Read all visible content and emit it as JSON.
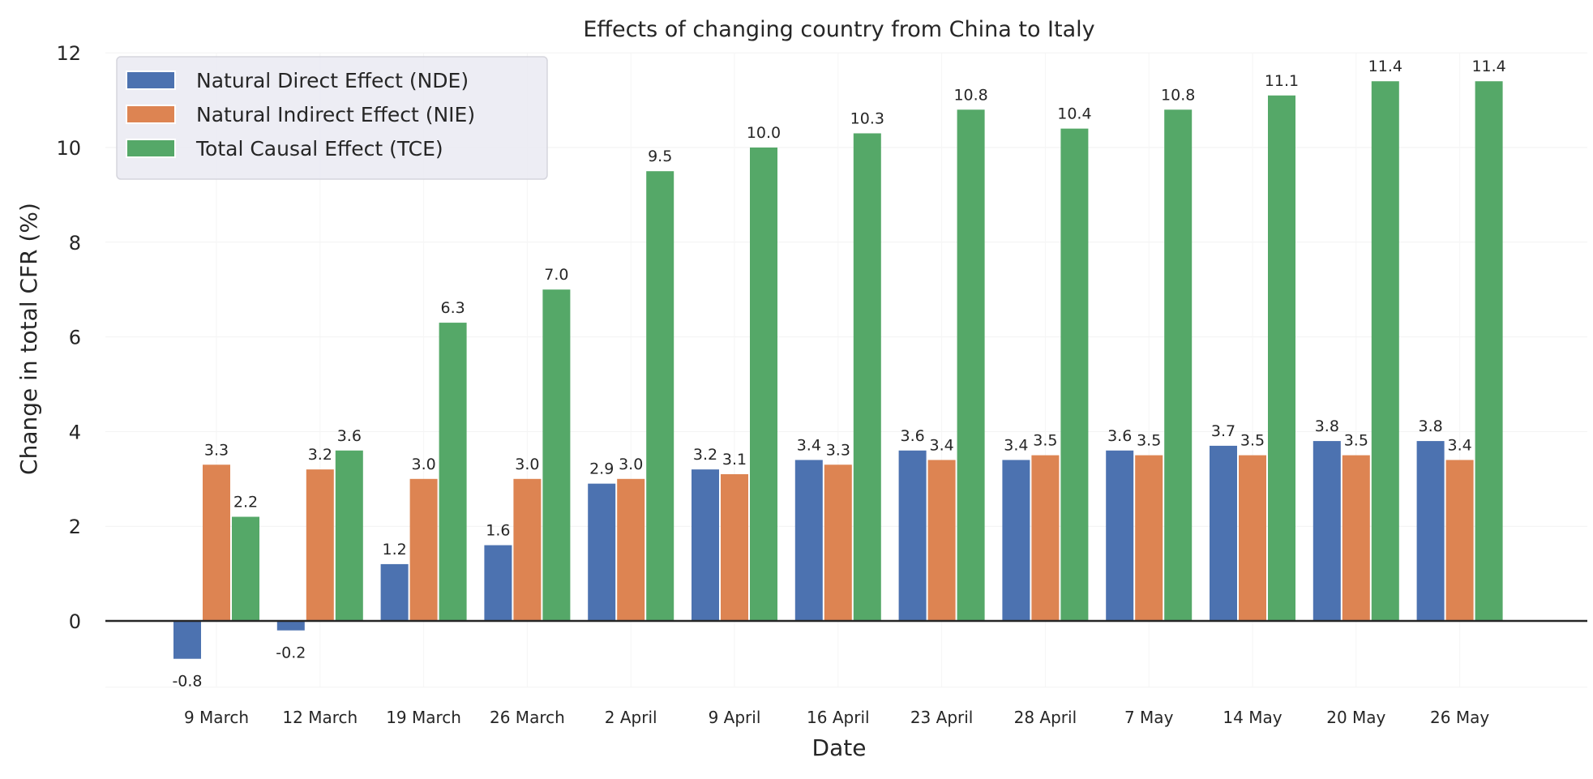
{
  "chart_data": {
    "type": "bar",
    "title": "Effects of changing country from China to Italy",
    "xlabel": "Date",
    "ylabel": "Change in total CFR (%)",
    "ylim": [
      -1.4,
      12
    ],
    "yticks": [
      0,
      2,
      4,
      6,
      8,
      10,
      12
    ],
    "grid": true,
    "legend_position": "top-left",
    "categories": [
      "9 March",
      "12 March",
      "19 March",
      "26 March",
      "2 April",
      "9 April",
      "16 April",
      "23 April",
      "28 April",
      "7 May",
      "14 May",
      "20 May",
      "26 May"
    ],
    "series": [
      {
        "name": "Natural Direct Effect (NDE)",
        "color": "#4c72b0",
        "values": [
          -0.8,
          -0.2,
          1.2,
          1.6,
          2.9,
          3.2,
          3.4,
          3.6,
          3.4,
          3.6,
          3.7,
          3.8,
          3.8
        ]
      },
      {
        "name": "Natural Indirect Effect (NIE)",
        "color": "#dd8452",
        "values": [
          3.3,
          3.2,
          3.0,
          3.0,
          3.0,
          3.1,
          3.3,
          3.4,
          3.5,
          3.5,
          3.5,
          3.5,
          3.4
        ]
      },
      {
        "name": "Total Causal Effect (TCE)",
        "color": "#55a868",
        "values": [
          2.2,
          3.6,
          6.3,
          7.0,
          9.5,
          10.0,
          10.3,
          10.8,
          10.4,
          10.8,
          11.1,
          11.4,
          11.4
        ]
      }
    ]
  }
}
